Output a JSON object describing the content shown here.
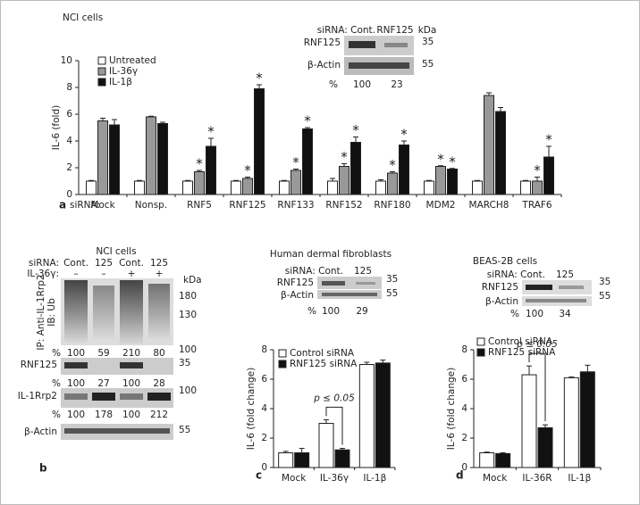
{
  "chart_data": [
    {
      "type": "bar",
      "title": "NCI cells",
      "ylabel": "IL-6 (fold)",
      "panel": "a",
      "xlabel": "siRNA:",
      "categories": [
        "Mock",
        "Nonsp.",
        "RNF5",
        "RNF125",
        "RNF133",
        "RNF152",
        "RNF180",
        "MDM2",
        "MARCH8",
        "TRAF6"
      ],
      "series": [
        {
          "name": "Untreated",
          "color": "#ffffff",
          "values": [
            1,
            1,
            1,
            1,
            1,
            1,
            1,
            1,
            1,
            1
          ],
          "errors": [
            0.05,
            0.05,
            0.05,
            0.05,
            0.05,
            0.2,
            0.1,
            0.05,
            0.05,
            0.05
          ],
          "annotations": [
            null,
            null,
            null,
            null,
            null,
            null,
            null,
            null,
            null,
            null
          ]
        },
        {
          "name": "IL-36γ",
          "color": "#999999",
          "values": [
            5.5,
            5.8,
            1.7,
            1.2,
            1.8,
            2.1,
            1.6,
            2.1,
            7.4,
            1.0
          ],
          "errors": [
            0.2,
            0.05,
            0.1,
            0.1,
            0.1,
            0.2,
            0.1,
            0.05,
            0.2,
            0.3
          ],
          "annotations": [
            null,
            null,
            "*",
            "*",
            "*",
            "*",
            "*",
            "*",
            null,
            "*"
          ]
        },
        {
          "name": "IL-1β",
          "color": "#111111",
          "values": [
            5.2,
            5.3,
            3.6,
            7.9,
            4.9,
            3.9,
            3.7,
            1.9,
            6.2,
            2.8
          ],
          "errors": [
            0.4,
            0.1,
            0.6,
            0.3,
            0.1,
            0.4,
            0.3,
            0.05,
            0.3,
            0.8
          ],
          "annotations": [
            null,
            null,
            "*",
            "*",
            "*",
            "*",
            "*",
            "*",
            null,
            "*"
          ]
        }
      ],
      "ylim": [
        0,
        10
      ],
      "yticks": [
        0,
        2,
        4,
        6,
        8,
        10
      ]
    },
    {
      "type": "bar",
      "ylabel": "IL-6 (fold change)",
      "panel": "c",
      "categories": [
        "Mock",
        "IL-36γ",
        "IL-1β"
      ],
      "series": [
        {
          "name": "Control siRNA",
          "color": "#ffffff",
          "values": [
            1.0,
            3.0,
            7.0
          ],
          "errors": [
            0.1,
            0.25,
            0.15
          ]
        },
        {
          "name": "RNF125 siRNA",
          "color": "#111111",
          "values": [
            1.0,
            1.2,
            7.1
          ],
          "errors": [
            0.3,
            0.1,
            0.2
          ]
        }
      ],
      "annotation": "p ≤ 0.05",
      "ylim": [
        0,
        8
      ],
      "yticks": [
        0,
        2,
        4,
        6,
        8
      ]
    },
    {
      "type": "bar",
      "ylabel": "IL-6 (fold change)",
      "panel": "d",
      "categories": [
        "Mock",
        "IL-36R",
        "IL-1β"
      ],
      "series": [
        {
          "name": "Control siRNA",
          "color": "#ffffff",
          "values": [
            1.0,
            6.3,
            6.1
          ],
          "errors": [
            0.05,
            0.6,
            0.05
          ]
        },
        {
          "name": "RNF125 siRNA",
          "color": "#111111",
          "values": [
            0.95,
            2.7,
            6.5
          ],
          "errors": [
            0.05,
            0.2,
            0.45
          ]
        }
      ],
      "annotation": "p ≤ 0.05",
      "ylim": [
        0,
        8
      ],
      "yticks": [
        0,
        2,
        4,
        6,
        8
      ]
    }
  ],
  "blot_a": {
    "header": "siRNA: Cont.",
    "lane2": "RNF125",
    "unit": "kDa",
    "rows": [
      "RNF125",
      "β-Actin"
    ],
    "markers": [
      35,
      55
    ],
    "percent": [
      "%",
      100,
      23
    ]
  },
  "blot_b": {
    "title": "NCI cells",
    "panel": "b",
    "sirna": "siRNA:",
    "lanes": [
      "Cont.",
      "125",
      "Cont.",
      "125"
    ],
    "treat": "IL-36γ:",
    "treat_lanes": [
      "–",
      "–",
      "+",
      "+"
    ],
    "unit": "kDa",
    "ub_label": [
      "IP: Anti-IL-1Rrp2",
      "IB: Ub"
    ],
    "ub_markers": [
      180,
      130,
      100
    ],
    "ub_percent": [
      "%",
      100,
      59,
      210,
      80
    ],
    "rnf_label": "RNF125",
    "rnf_marker": 35,
    "rnf_percent": [
      "%",
      100,
      27,
      100,
      28
    ],
    "rrp_label": "IL-1Rrp2",
    "rrp_marker": 100,
    "rrp_percent": [
      "%",
      100,
      178,
      100,
      212
    ],
    "actin_label": "β-Actin",
    "actin_marker": 55
  },
  "blot_hdf": {
    "title": "Human dermal fibroblasts",
    "header": "siRNA: Cont.",
    "lane2": "125",
    "rows": [
      "RNF125",
      "β-Actin"
    ],
    "markers": [
      35,
      55
    ],
    "percent": [
      "%",
      100,
      29
    ]
  },
  "blot_beas": {
    "title": "BEAS-2B cells",
    "header": "siRNA: Cont.",
    "lane2": "125",
    "rows": [
      "RNF125",
      "β-Actin"
    ],
    "markers": [
      35,
      55
    ],
    "percent": [
      "%",
      100,
      34
    ]
  }
}
